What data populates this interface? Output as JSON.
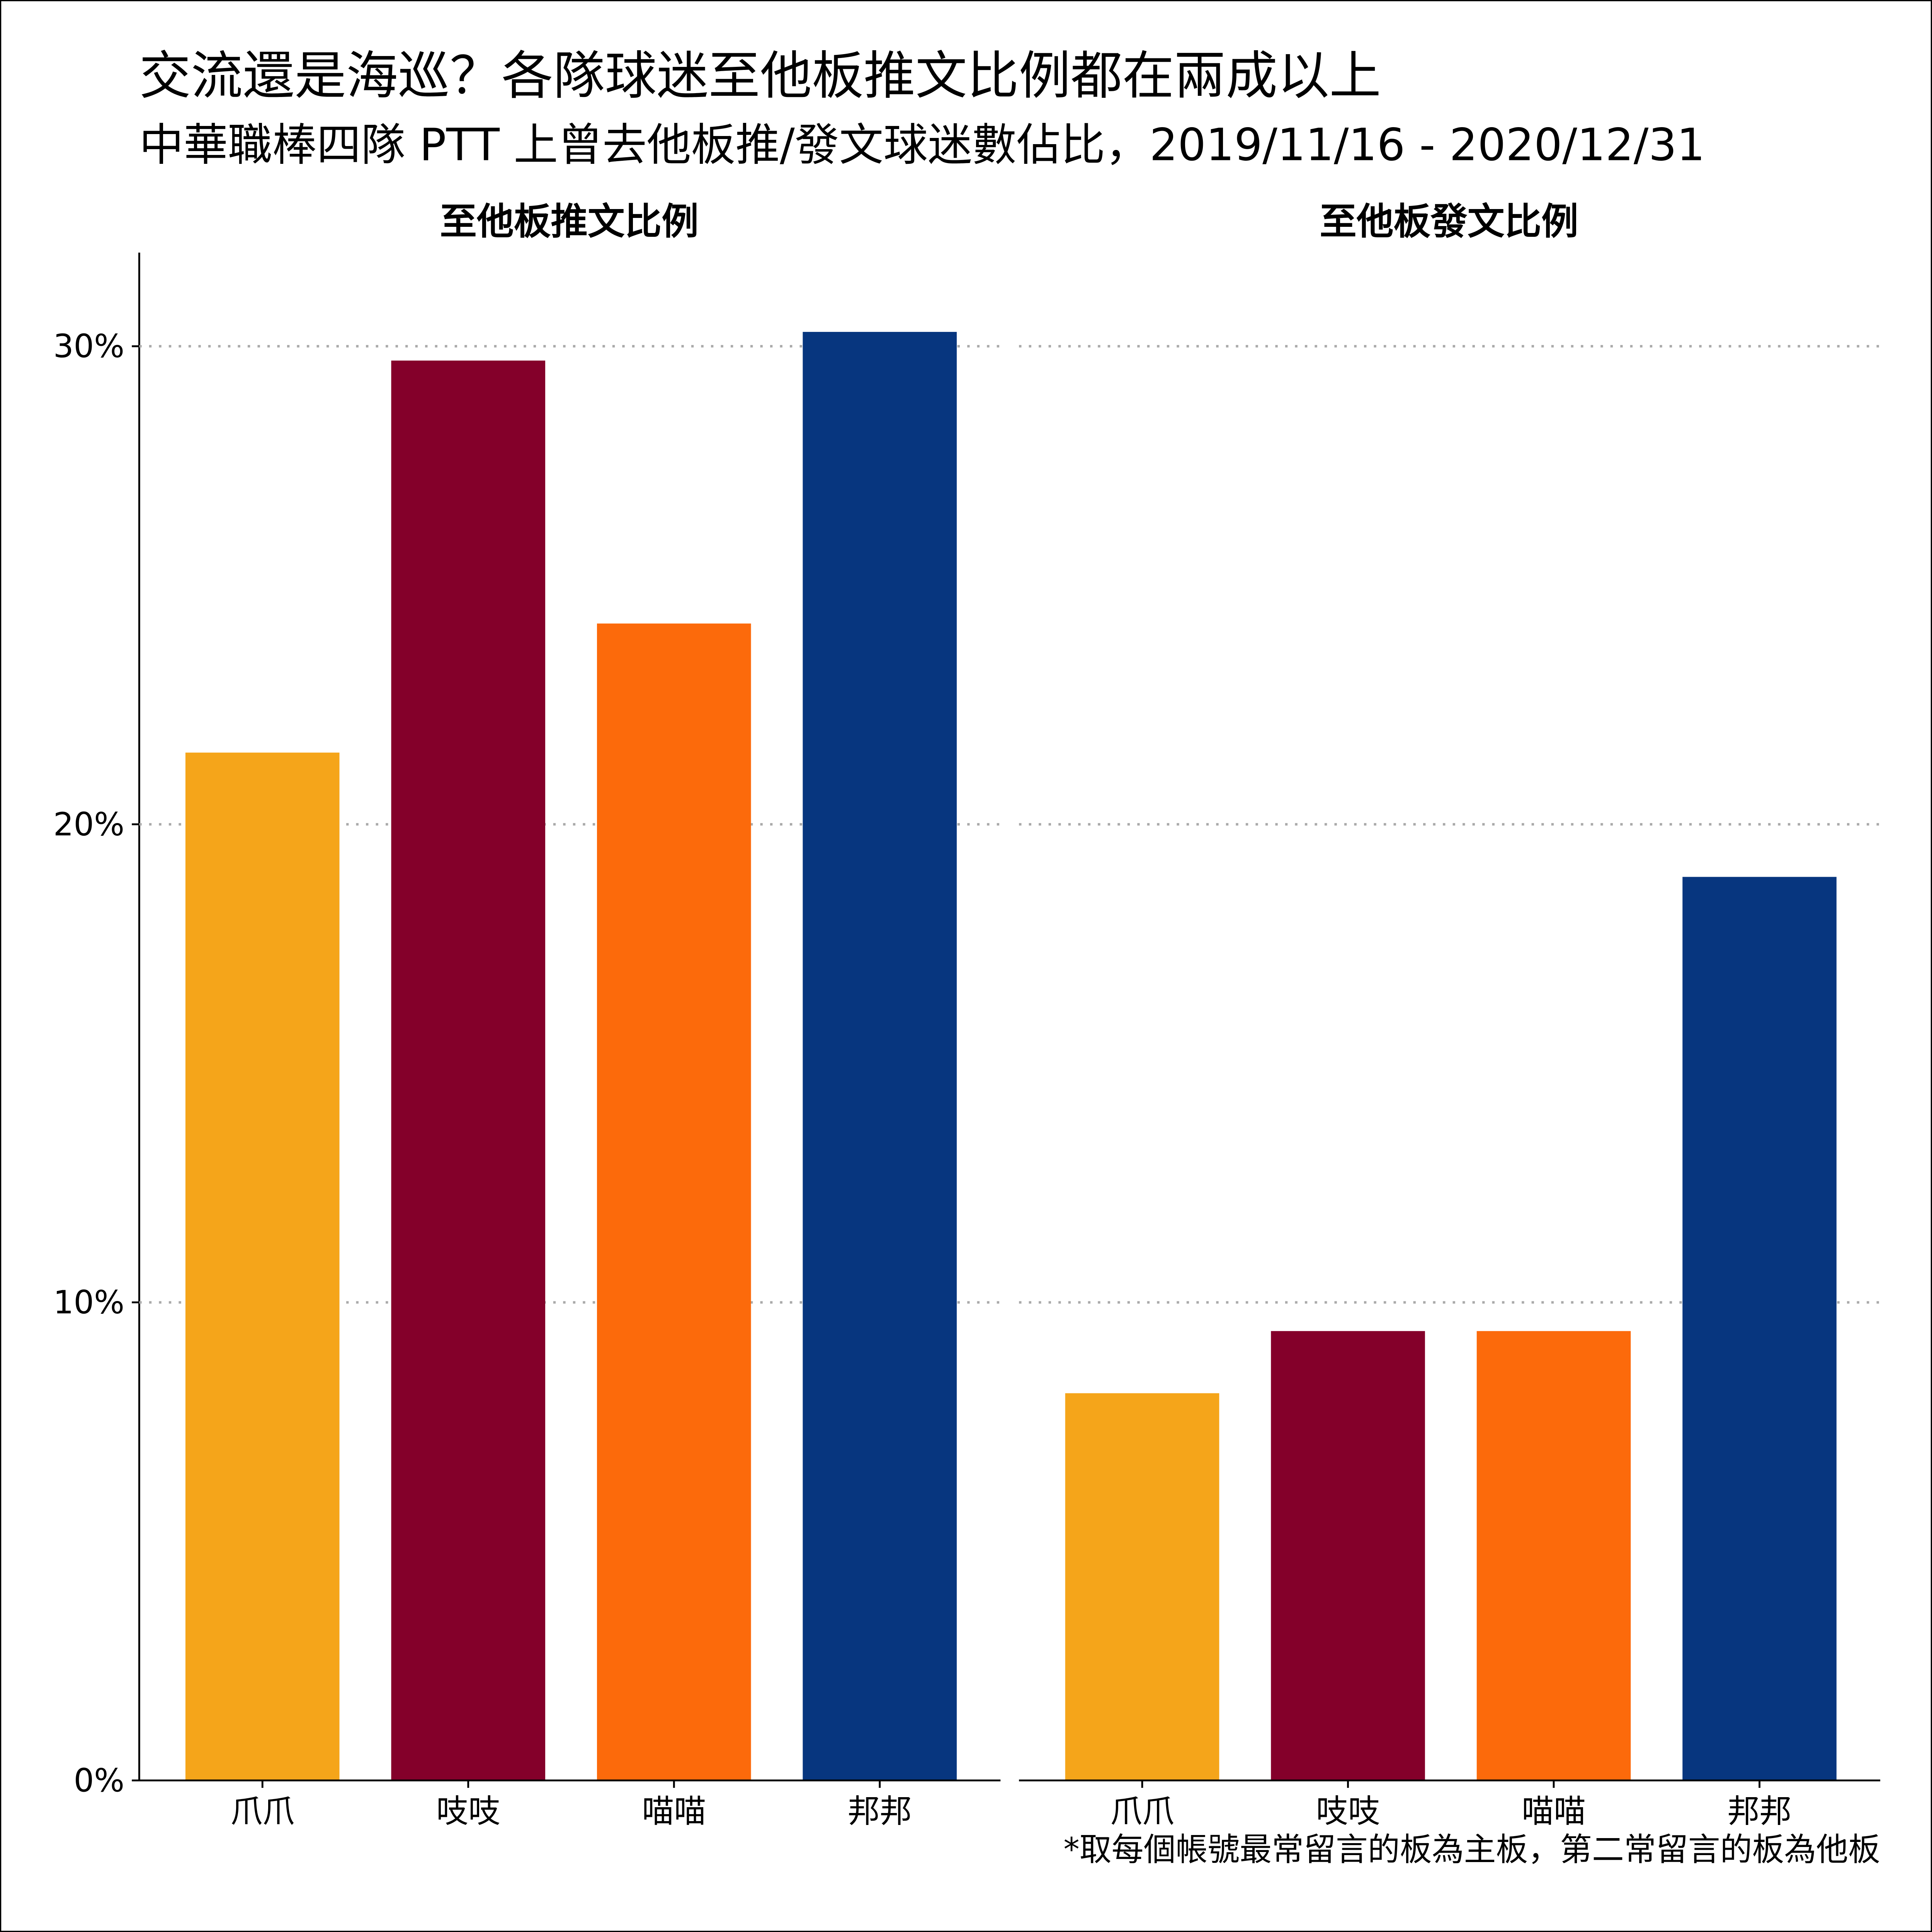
{
  "chart_data": {
    "type": "bar",
    "title": "交流還是海巡？各隊球迷至他板推文比例都在兩成以上",
    "subtitle": "中華職棒四隊 PTT 上曾去他板推/發文球迷數佔比，2019/11/16 - 2020/12/31",
    "caption": "*取每個帳號最常留言的板為主板，第二常留言的板為他板",
    "categories": [
      "爪爪",
      "吱吱",
      "喵喵",
      "邦邦"
    ],
    "colors": [
      "#F5A51A",
      "#84002A",
      "#FC6A0B",
      "#07367F"
    ],
    "ylim": [
      0,
      32
    ],
    "yticks": [
      0,
      10,
      20,
      30
    ],
    "ytick_labels": [
      "0%",
      "10%",
      "20%",
      "30%"
    ],
    "grid": "horizontal-dotted",
    "panels": [
      {
        "title": "至他板推文比例",
        "values": [
          21.5,
          29.7,
          24.2,
          30.3
        ]
      },
      {
        "title": "至他板發文比例",
        "values": [
          8.1,
          9.4,
          9.4,
          18.9
        ]
      }
    ]
  }
}
